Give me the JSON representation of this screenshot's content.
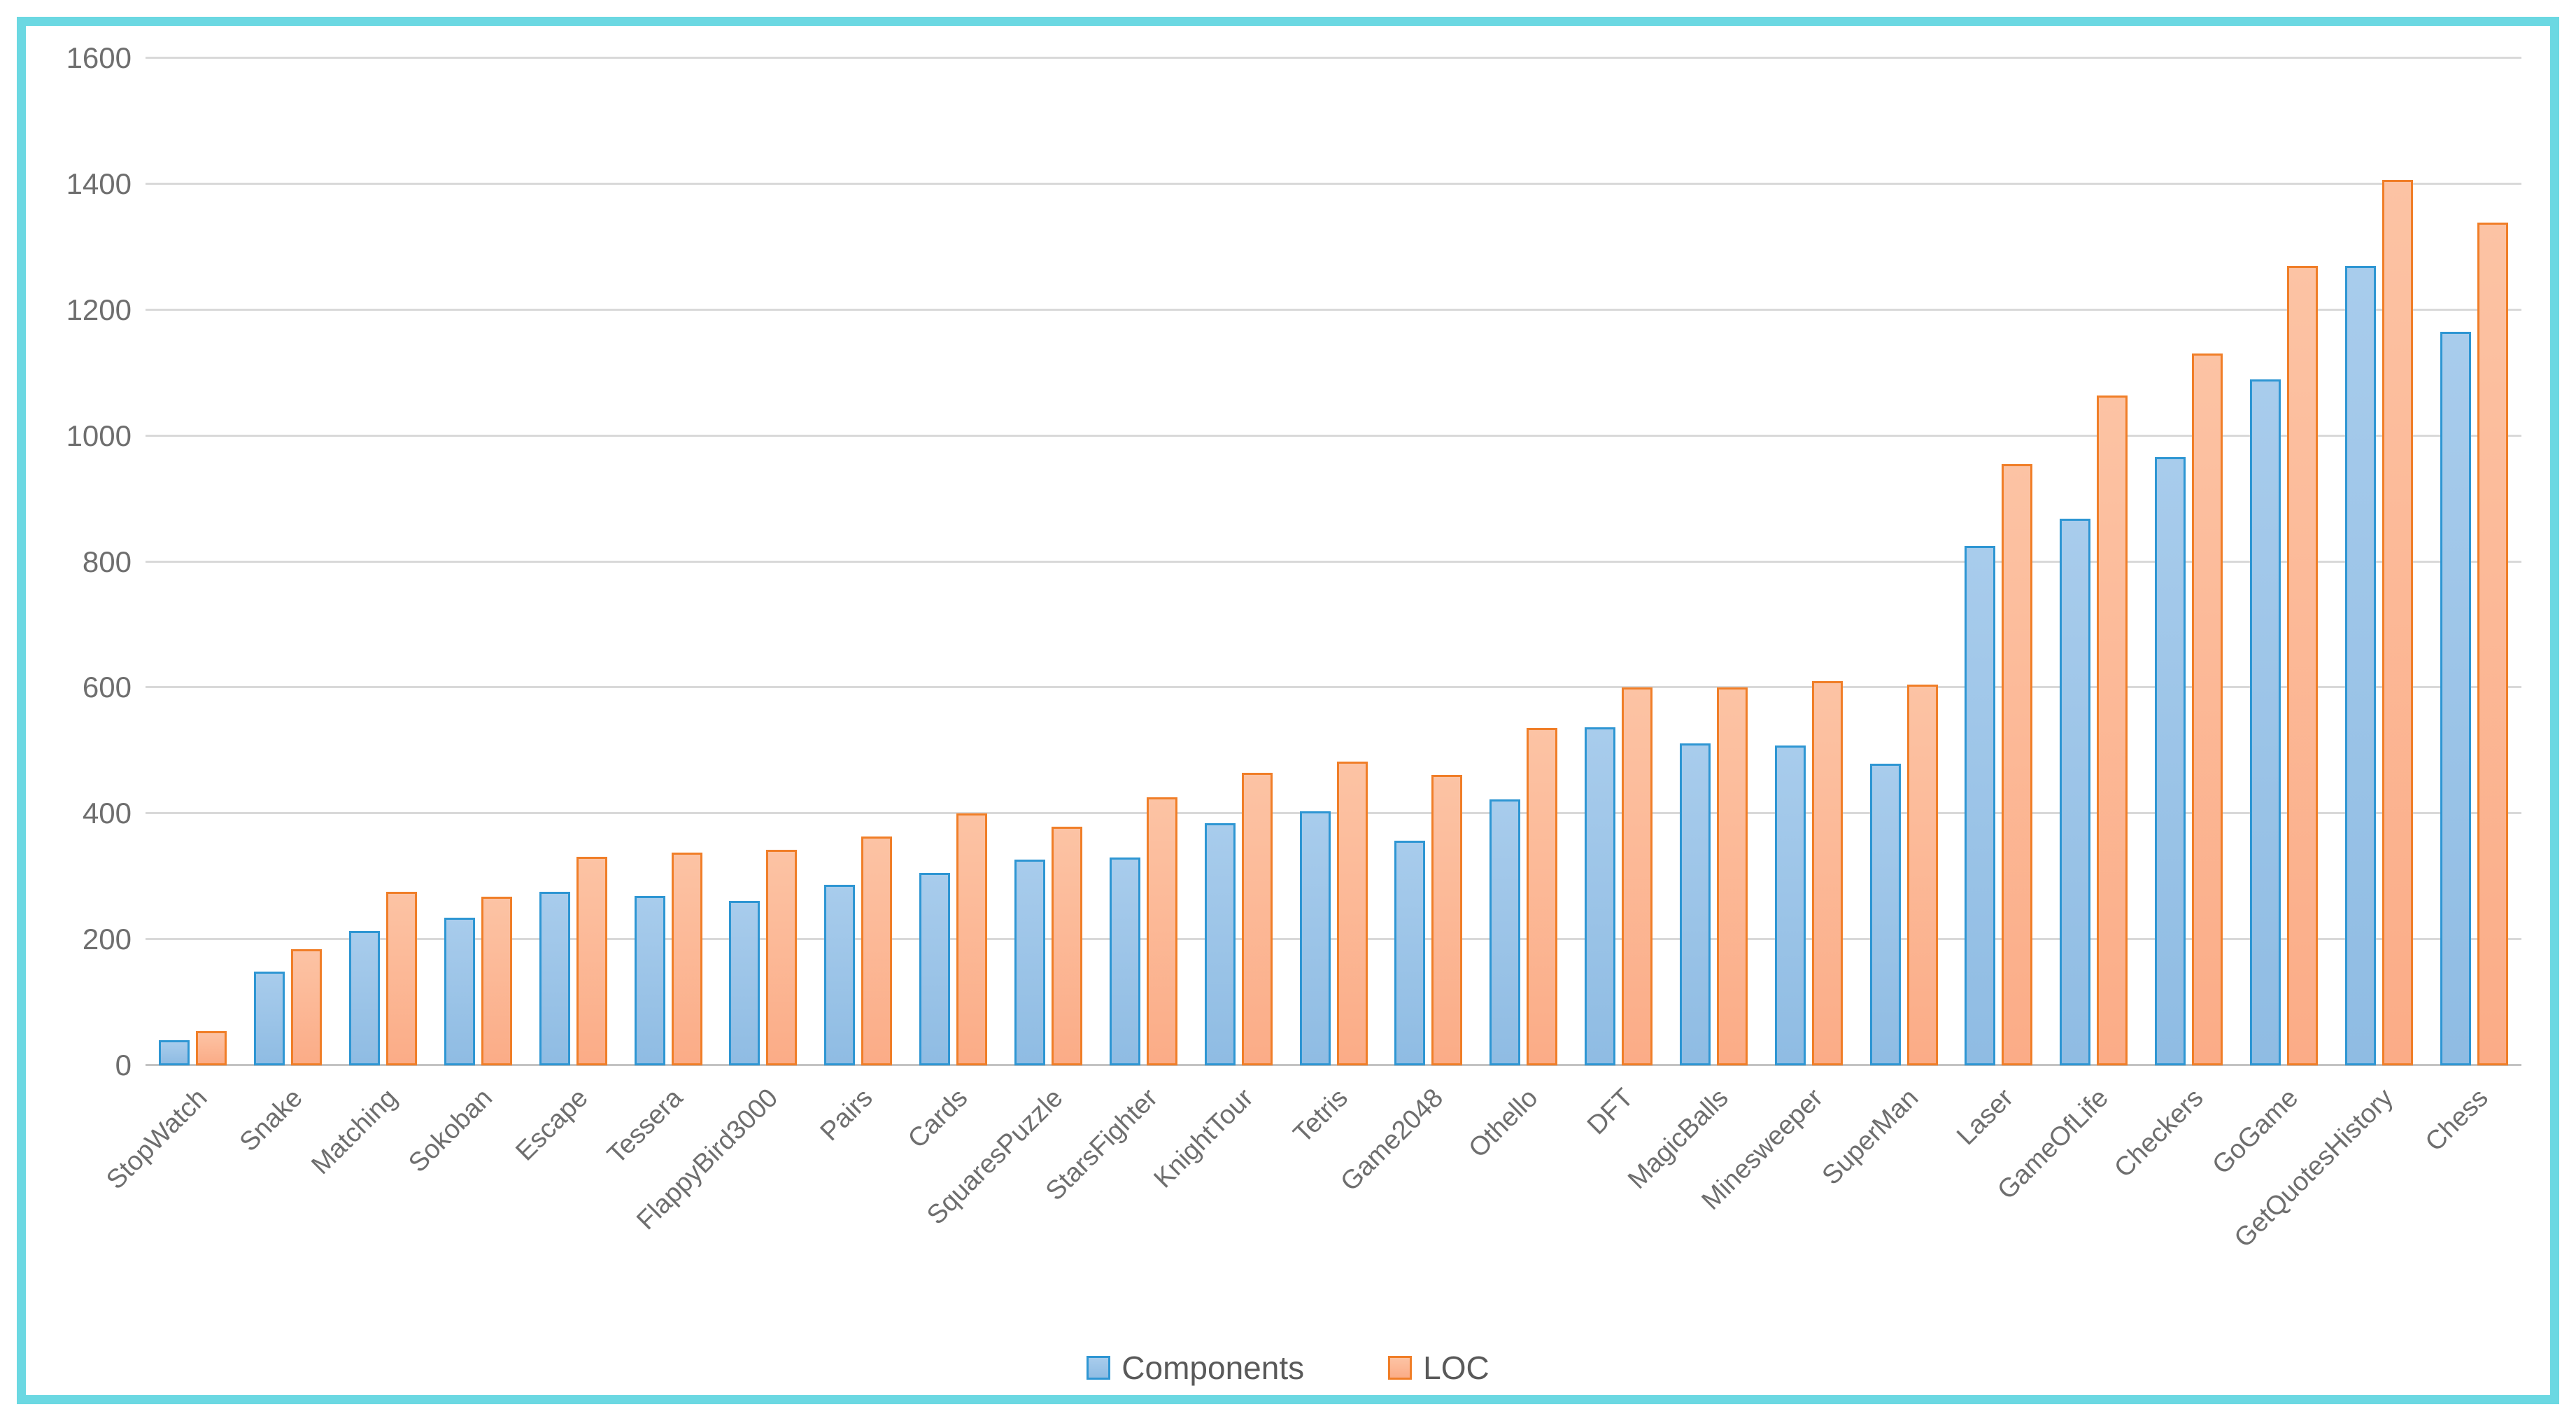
{
  "chart_data": {
    "type": "bar",
    "title": "",
    "categories": [
      "StopWatch",
      "Snake",
      "Matching",
      "Sokoban",
      "Escape",
      "Tessera",
      "FlappyBird3000",
      "Pairs",
      "Cards",
      "SquaresPuzzle",
      "StarsFighter",
      "KnightTour",
      "Tetris",
      "Game2048",
      "Othello",
      "DFT",
      "MagicBalls",
      "Minesweeper",
      "SuperMan",
      "Laser",
      "GameOfLife",
      "Checkers",
      "GoGame",
      "GetQuotesHistory",
      "Chess"
    ],
    "series": [
      {
        "name": "Components",
        "values": [
          40,
          149,
          214,
          235,
          276,
          269,
          261,
          287,
          306,
          327,
          330,
          385,
          404,
          357,
          422,
          537,
          512,
          508,
          479,
          825,
          868,
          966,
          1090,
          1270,
          1165
        ],
        "fill_top": "#A8CCEC",
        "fill_bottom": "#8FBCE3",
        "border": "#2E96D3"
      },
      {
        "name": "LOC",
        "values": [
          55,
          185,
          276,
          268,
          331,
          338,
          342,
          364,
          400,
          379,
          426,
          465,
          483,
          461,
          536,
          600,
          600,
          610,
          605,
          955,
          1064,
          1131,
          1270,
          1407,
          1339
        ],
        "fill_top": "#FCC3A4",
        "fill_bottom": "#FBAC87",
        "border": "#F07E28"
      }
    ],
    "ylim": [
      0,
      1600
    ],
    "ytick_step": 200,
    "yticks": [
      "0",
      "200",
      "400",
      "600",
      "800",
      "1000",
      "1200",
      "1400",
      "1600"
    ],
    "grid": true,
    "legend_position": "bottom",
    "xlabel": "",
    "ylabel": ""
  },
  "style": {
    "frame_border_color": "#6BD8E2",
    "axis_text_color": "#6E6E6E",
    "legend_text_color": "#595959",
    "gridline_color": "#D9D9D9",
    "baseline_color": "#C3C3C3",
    "background_color": "#FFFFFF"
  }
}
